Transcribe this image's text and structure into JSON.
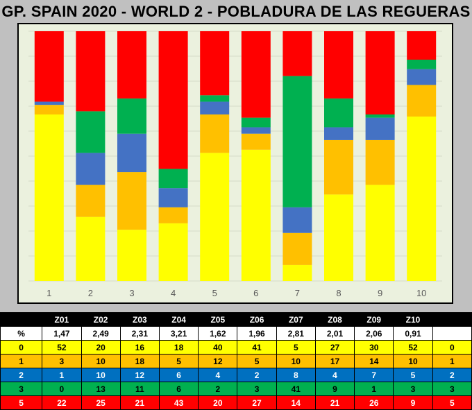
{
  "title": "GP. SPAIN 2020 - WORLD 2 - POBLADURA DE LAS REGUERAS",
  "chart_data": {
    "type": "bar",
    "stacked": true,
    "normalized": true,
    "categories": [
      "1",
      "2",
      "3",
      "4",
      "5",
      "6",
      "7",
      "8",
      "9",
      "10"
    ],
    "series": [
      {
        "key": "0",
        "values": [
          52,
          20,
          16,
          18,
          40,
          41,
          5,
          27,
          30,
          52
        ],
        "color": "#ffff00"
      },
      {
        "key": "1",
        "values": [
          3,
          10,
          18,
          5,
          12,
          5,
          10,
          17,
          14,
          10
        ],
        "color": "#ffc000"
      },
      {
        "key": "2",
        "values": [
          1,
          10,
          12,
          6,
          4,
          2,
          8,
          4,
          7,
          5
        ],
        "color": "#4472c4"
      },
      {
        "key": "3",
        "values": [
          0,
          13,
          11,
          6,
          2,
          3,
          41,
          9,
          1,
          3
        ],
        "color": "#00b050"
      },
      {
        "key": "5",
        "values": [
          22,
          25,
          21,
          43,
          20,
          27,
          14,
          21,
          26,
          9
        ],
        "color": "#ff0000"
      }
    ],
    "ylim": [
      0,
      100
    ],
    "grid": true,
    "legend": "none",
    "background": "#ebf1de"
  },
  "table": {
    "columns": [
      "",
      "Z01",
      "Z02",
      "Z03",
      "Z04",
      "Z05",
      "Z06",
      "Z07",
      "Z08",
      "Z09",
      "Z10",
      ""
    ],
    "rows": [
      {
        "cells": [
          "%",
          "1,47",
          "2,49",
          "2,31",
          "3,21",
          "1,62",
          "1,96",
          "2,81",
          "2,01",
          "2,06",
          "0,91",
          ""
        ],
        "bg": "#ffffff",
        "color": "#000000"
      },
      {
        "cells": [
          "0",
          "52",
          "20",
          "16",
          "18",
          "40",
          "41",
          "5",
          "27",
          "30",
          "52",
          "0"
        ],
        "bg": "#ffff00",
        "color": "#000000"
      },
      {
        "cells": [
          "1",
          "3",
          "10",
          "18",
          "5",
          "12",
          "5",
          "10",
          "17",
          "14",
          "10",
          "1"
        ],
        "bg": "#ffc000",
        "color": "#000000"
      },
      {
        "cells": [
          "2",
          "1",
          "10",
          "12",
          "6",
          "4",
          "2",
          "8",
          "4",
          "7",
          "5",
          "2"
        ],
        "bg": "#0070c0",
        "color": "#ffffff"
      },
      {
        "cells": [
          "3",
          "0",
          "13",
          "11",
          "6",
          "2",
          "3",
          "41",
          "9",
          "1",
          "3",
          "3"
        ],
        "bg": "#00b050",
        "color": "#000000"
      },
      {
        "cells": [
          "5",
          "22",
          "25",
          "21",
          "43",
          "20",
          "27",
          "14",
          "21",
          "26",
          "9",
          "5"
        ],
        "bg": "#ff0000",
        "color": "#ffffff"
      }
    ]
  }
}
